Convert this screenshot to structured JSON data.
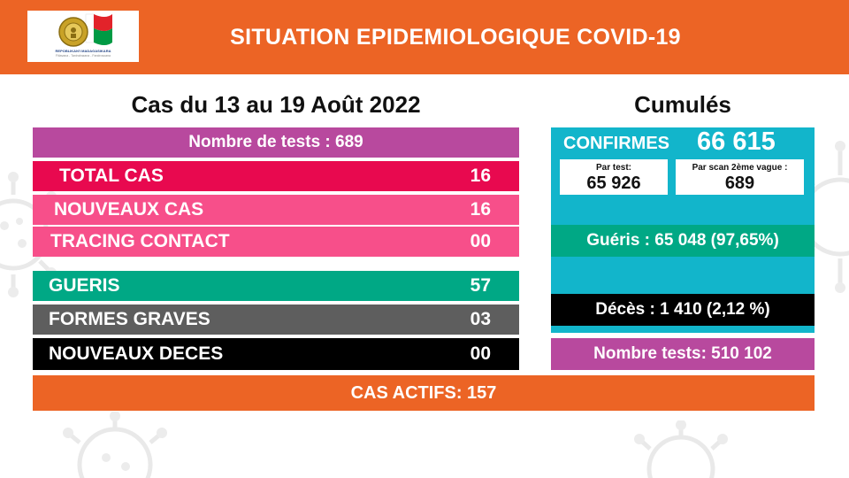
{
  "header": {
    "title": "SITUATION EPIDEMIOLOGIQUE COVID-19",
    "logo_caption": "REPOBLIKAN'I MADAGASIKARA",
    "logo_motto": "Fitiavana - Tanindrazana - Fandrosoana"
  },
  "period": {
    "title": "Cas du 13 au 19 Août 2022",
    "tests_label": "Nombre de tests : 689",
    "rows": [
      {
        "label": "TOTAL CAS",
        "value": "16"
      },
      {
        "label": "NOUVEAUX CAS",
        "value": "16"
      },
      {
        "label": "TRACING CONTACT",
        "value": "00"
      },
      {
        "label": "GUERIS",
        "value": "57"
      },
      {
        "label": "FORMES GRAVES",
        "value": "03"
      },
      {
        "label": "NOUVEAUX DECES",
        "value": "00"
      }
    ]
  },
  "cumules": {
    "title": "Cumulés",
    "confirmes_label": "CONFIRMES",
    "confirmes_value": "66 615",
    "par_test_label": "Par test:",
    "par_test_value": "65 926",
    "par_scan_label": "Par scan 2ème vague :",
    "par_scan_value": "689",
    "gueris": "Guéris : 65 048 (97,65%)",
    "deces": "Décès : 1 410 (2,12 %)",
    "tests": "Nombre tests: 510 102"
  },
  "actifs": "CAS ACTIFS: 157",
  "colors": {
    "orange": "#ec6425",
    "purple": "#b8499e",
    "crimson": "#e8094f",
    "pink": "#f74f8a",
    "green": "#00a885",
    "gray": "#5e5e5e",
    "black": "#000000",
    "cyan": "#12b5cb"
  }
}
